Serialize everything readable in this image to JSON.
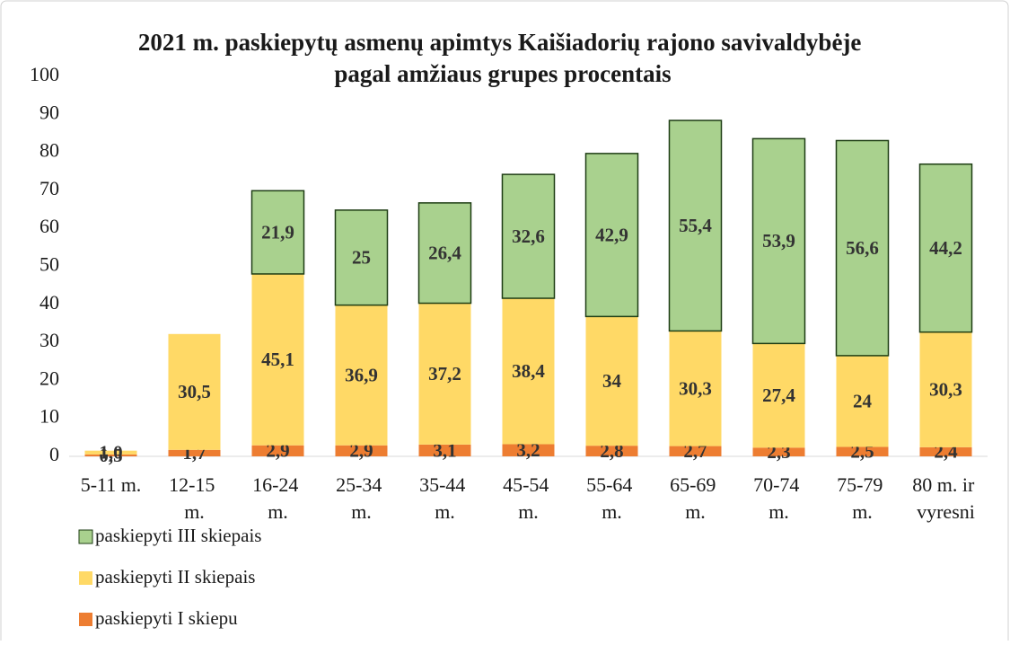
{
  "chart_data": {
    "type": "stacked_bar",
    "title": "2021 m. paskiepytų asmenų apimtys Kaišiadorių rajono savivaldybėje pagal amžiaus grupes procentais",
    "categories": [
      "5-11 m.",
      "12-15 m.",
      "16-24 m.",
      "25-34 m.",
      "35-44 m.",
      "45-54 m.",
      "55-64 m.",
      "65-69 m.",
      "70-74 m.",
      "75-79 m.",
      "80 m. ir vyresni"
    ],
    "series": [
      {
        "name": "paskiepyti I skiepu",
        "color": "#ed7d31",
        "values": [
          0.5,
          1.7,
          2.9,
          2.9,
          3.1,
          3.2,
          2.8,
          2.7,
          2.3,
          2.5,
          2.4
        ],
        "value_labels": [
          "0,5",
          "1,7",
          "2,9",
          "2,9",
          "3,1",
          "3,2",
          "2,8",
          "2,7",
          "2,3",
          "2,5",
          "2,4"
        ]
      },
      {
        "name": "paskiepyti II skiepais",
        "color": "#ffd966",
        "values": [
          1.0,
          30.5,
          45.1,
          36.9,
          37.2,
          38.4,
          34,
          30.3,
          27.4,
          24,
          30.3
        ],
        "value_labels": [
          "1,0",
          "30,5",
          "45,1",
          "36,9",
          "37,2",
          "38,4",
          "34",
          "30,3",
          "27,4",
          "24",
          "30,3"
        ]
      },
      {
        "name": "paskiepyti III skiepais",
        "color": "#a9d18e",
        "values": [
          null,
          null,
          21.9,
          25,
          26.4,
          32.6,
          42.9,
          55.4,
          53.9,
          56.6,
          44.2
        ],
        "value_labels": [
          null,
          null,
          "21,9",
          "25",
          "26,4",
          "32,6",
          "42,9",
          "55,4",
          "53,9",
          "56,6",
          "44,2"
        ]
      }
    ],
    "ylim": [
      0,
      100
    ],
    "yticks": [
      0,
      10,
      20,
      30,
      40,
      50,
      60,
      70,
      80,
      90,
      100
    ],
    "grid": false,
    "legend": "bottom-left"
  }
}
